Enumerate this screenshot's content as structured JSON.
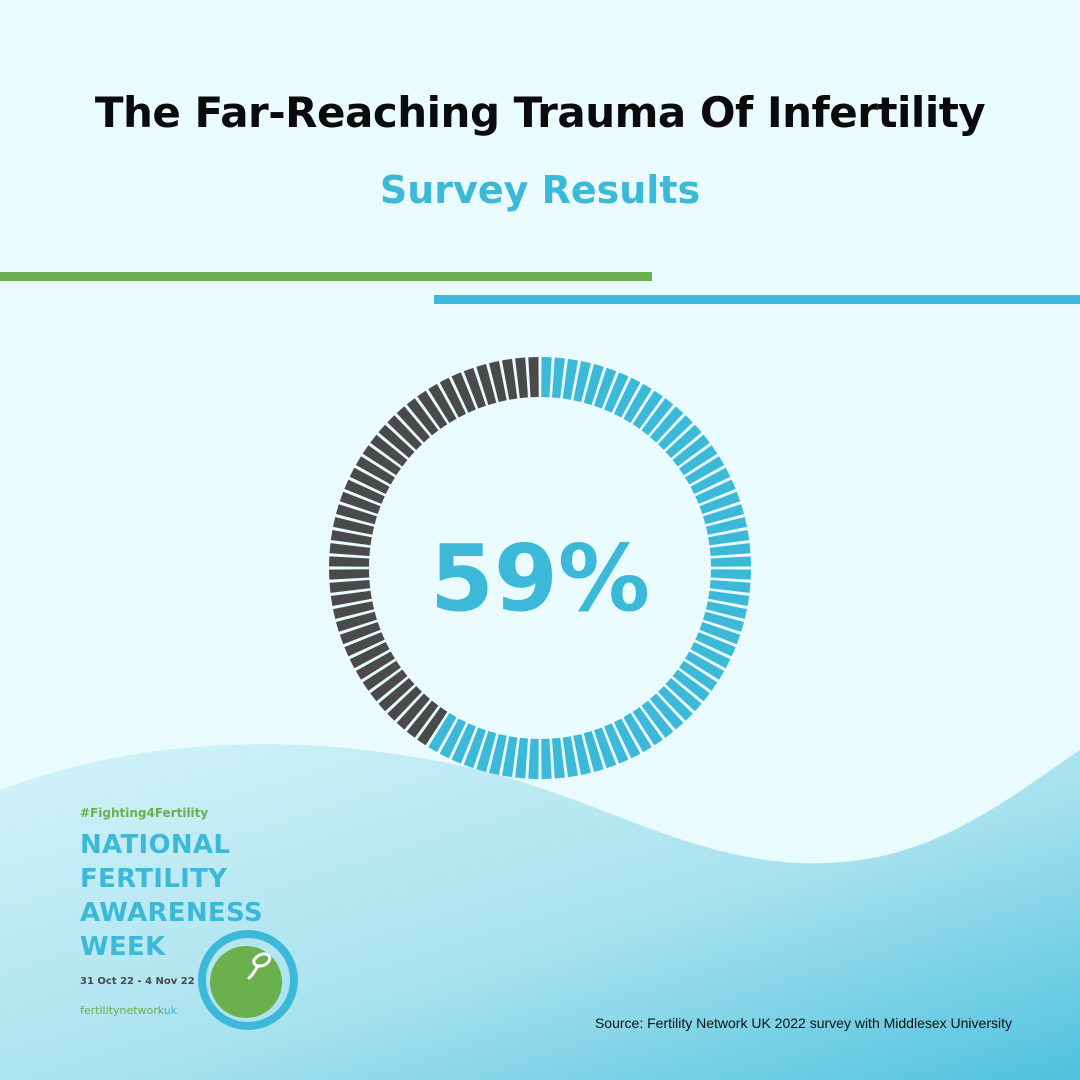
{
  "title": "The Far-Reaching Trauma Of Infertility",
  "subtitle": "Survey Results",
  "chart_data": {
    "type": "pie",
    "value_label": "59%",
    "slices": [
      {
        "value": 59,
        "color": "#3cb8d8"
      },
      {
        "value": 41,
        "color": "#4a4a4a"
      }
    ],
    "segments_total": 100
  },
  "logo": {
    "hashtag": "#Fighting4Fertility",
    "lines": [
      "NATIONAL",
      "FERTILITY",
      "AWARENESS",
      "WEEK"
    ],
    "dates": "31 Oct 22 - 4 Nov 22",
    "brand_main": "fertility",
    "brand_network": "network",
    "brand_uk": "uk"
  },
  "source": "Source: Fertility Network UK 2022 survey with Middlesex University",
  "colors": {
    "accent_blue": "#3cb8d8",
    "accent_green": "#6ab04c",
    "dark_segment": "#4a4a4a",
    "background": "#e9fbfd"
  }
}
